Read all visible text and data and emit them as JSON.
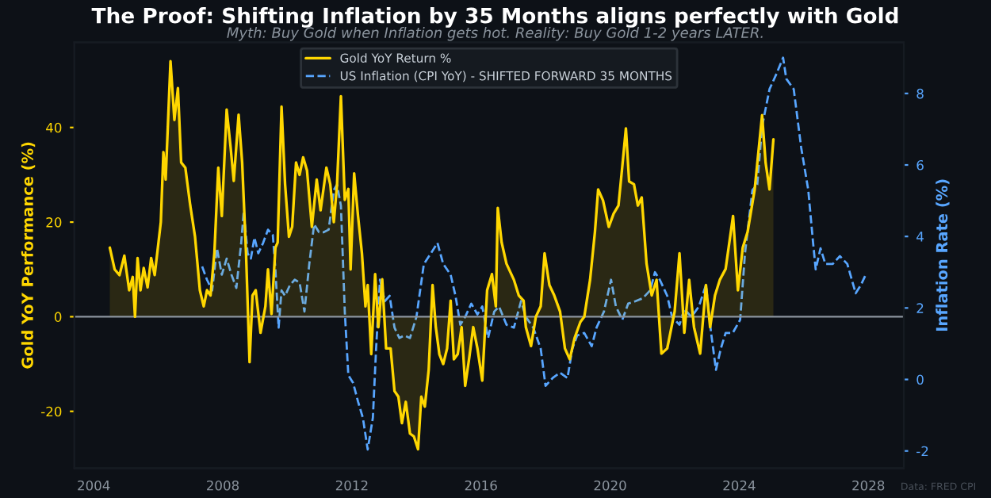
{
  "chart_data": {
    "type": "line",
    "title": "The Proof: Shifting Inflation by 35 Months aligns perfectly with Gold",
    "subtitle": "Myth: Buy Gold when Inflation gets hot. Reality: Buy Gold 1-2 years LATER.",
    "ylabel": "Gold YoY Performance (%)",
    "y2label": "Inflation Rate (%)",
    "annotations": [
      "Data: FRED CPI"
    ],
    "xlim": [
      2003.4,
      2029.1
    ],
    "xticks": [
      2004,
      2008,
      2012,
      2016,
      2020,
      2024,
      2028
    ],
    "ylim": [
      -32,
      58
    ],
    "yticks": [
      -20,
      0,
      20,
      40
    ],
    "y2lim": [
      -2.48,
      9.43
    ],
    "y2ticks": [
      -2,
      0,
      2,
      4,
      6,
      8
    ],
    "ref_lines": [
      {
        "axis": "y",
        "value": 0,
        "color": "#8b949e"
      }
    ],
    "grid": false,
    "legend": "top",
    "series": [
      {
        "name": "Gold YoY Return %",
        "type": "area",
        "color": "#ffd700",
        "x": [
          2004.5,
          2004.65,
          2004.8,
          2004.95,
          2005.1,
          2005.21,
          2005.28,
          2005.36,
          2005.45,
          2005.55,
          2005.67,
          2005.78,
          2005.89,
          2006.08,
          2006.16,
          2006.23,
          2006.38,
          2006.5,
          2006.61,
          2006.71,
          2006.84,
          2006.99,
          2007.14,
          2007.29,
          2007.41,
          2007.51,
          2007.62,
          2007.74,
          2007.86,
          2007.97,
          2008.12,
          2008.24,
          2008.34,
          2008.49,
          2008.6,
          2008.72,
          2008.83,
          2008.92,
          2009.02,
          2009.17,
          2009.32,
          2009.4,
          2009.51,
          2009.63,
          2009.7,
          2009.82,
          2009.93,
          2010.05,
          2010.15,
          2010.27,
          2010.38,
          2010.49,
          2010.61,
          2010.76,
          2010.91,
          2011.03,
          2011.21,
          2011.33,
          2011.44,
          2011.54,
          2011.66,
          2011.78,
          2011.89,
          2011.96,
          2012.07,
          2012.19,
          2012.31,
          2012.42,
          2012.49,
          2012.6,
          2012.72,
          2012.82,
          2012.94,
          2013.06,
          2013.2,
          2013.32,
          2013.44,
          2013.55,
          2013.67,
          2013.8,
          2013.92,
          2014.05,
          2014.15,
          2014.26,
          2014.38,
          2014.5,
          2014.6,
          2014.71,
          2014.83,
          2014.95,
          2015.06,
          2015.16,
          2015.28,
          2015.4,
          2015.51,
          2015.63,
          2015.76,
          2015.89,
          2016.04,
          2016.19,
          2016.34,
          2016.46,
          2016.52,
          2016.64,
          2016.79,
          2017.02,
          2017.17,
          2017.32,
          2017.39,
          2017.55,
          2017.7,
          2017.85,
          2017.97,
          2018.12,
          2018.27,
          2018.45,
          2018.6,
          2018.75,
          2018.9,
          2019.08,
          2019.2,
          2019.38,
          2019.53,
          2019.63,
          2019.78,
          2019.96,
          2020.11,
          2020.26,
          2020.38,
          2020.49,
          2020.59,
          2020.74,
          2020.86,
          2020.98,
          2021.13,
          2021.29,
          2021.44,
          2021.59,
          2021.77,
          2022.0,
          2022.15,
          2022.3,
          2022.45,
          2022.6,
          2022.79,
          2022.97,
          2023.1,
          2023.25,
          2023.4,
          2023.58,
          2023.81,
          2023.96,
          2024.11,
          2024.26,
          2024.48,
          2024.71,
          2024.82,
          2024.94,
          2025.06
        ],
        "values": [
          14.6,
          10,
          8.8,
          12.9,
          5.6,
          8.4,
          0,
          12.4,
          5.6,
          10.3,
          6.2,
          12.4,
          8.8,
          20,
          34.8,
          29,
          54,
          41.6,
          48.3,
          32.6,
          31.5,
          23.6,
          16.9,
          5.6,
          2.2,
          5.6,
          4.5,
          13.5,
          31.5,
          21.3,
          43.8,
          36,
          28.7,
          42.7,
          32.6,
          13.5,
          -9.6,
          4.5,
          5.6,
          -3.4,
          2.2,
          10,
          0.6,
          14.6,
          15.7,
          44.4,
          28,
          16.9,
          19,
          32.6,
          30,
          33.7,
          30.9,
          19,
          29,
          22.5,
          31.5,
          28,
          20,
          28,
          46.6,
          24.7,
          27,
          10,
          30.3,
          21.3,
          13.5,
          2.2,
          6.7,
          -7.9,
          9,
          -2.2,
          7.9,
          -6.7,
          -6.7,
          -15.7,
          -16.9,
          -22.5,
          -18,
          -24.7,
          -25.3,
          -28,
          -16.9,
          -19,
          -11.2,
          6.7,
          -2.2,
          -7.9,
          -10,
          -6.7,
          3.4,
          -9,
          -7.9,
          -2.2,
          -14.6,
          -9,
          -2.2,
          -6.7,
          -13.5,
          5.6,
          9,
          2.2,
          23,
          15.7,
          11.2,
          7.8,
          4.5,
          3.4,
          -2.2,
          -6.2,
          0,
          2.2,
          13.4,
          6.7,
          4.5,
          1.1,
          -6.7,
          -9,
          -4.5,
          -1.1,
          0,
          7.8,
          17.9,
          26.9,
          24.6,
          19,
          21.8,
          23.5,
          31.9,
          39.8,
          28.6,
          28,
          23.5,
          25.2,
          11.2,
          4.5,
          7.8,
          -7.8,
          -6.7,
          1.1,
          13.4,
          -3.4,
          7.8,
          -2.2,
          -7.8,
          6.7,
          -2.2,
          4.5,
          7.8,
          10.1,
          21.3,
          5.6,
          14.6,
          17.9,
          26.9,
          42.6,
          32.5,
          26.9,
          37.5
        ]
      },
      {
        "name": "US Inflation (CPI YoY) - SHIFTED FORWARD 35 MONTHS",
        "axis": "y2",
        "line_style": "dashed",
        "color": "#58a6ff",
        "x": [
          2007.36,
          2007.51,
          2007.67,
          2007.82,
          2007.97,
          2008.12,
          2008.27,
          2008.42,
          2008.57,
          2008.65,
          2008.77,
          2008.87,
          2008.98,
          2009.1,
          2009.25,
          2009.4,
          2009.55,
          2009.63,
          2009.73,
          2009.82,
          2009.93,
          2010.08,
          2010.23,
          2010.38,
          2010.53,
          2010.68,
          2010.83,
          2010.98,
          2011.13,
          2011.28,
          2011.44,
          2011.54,
          2011.66,
          2011.78,
          2011.89,
          2012.04,
          2012.19,
          2012.34,
          2012.49,
          2012.65,
          2012.75,
          2012.87,
          2013.02,
          2013.17,
          2013.32,
          2013.47,
          2013.62,
          2013.8,
          2014.0,
          2014.23,
          2014.45,
          2014.65,
          2014.83,
          2015.06,
          2015.21,
          2015.36,
          2015.51,
          2015.7,
          2015.89,
          2016.04,
          2016.22,
          2016.41,
          2016.56,
          2016.79,
          2017.02,
          2017.24,
          2017.39,
          2017.62,
          2017.85,
          2018.0,
          2018.22,
          2018.45,
          2018.68,
          2018.83,
          2018.98,
          2019.2,
          2019.43,
          2019.58,
          2019.81,
          2020.03,
          2020.18,
          2020.38,
          2020.56,
          2020.79,
          2021.01,
          2021.24,
          2021.39,
          2021.54,
          2021.77,
          2021.92,
          2022.15,
          2022.3,
          2022.52,
          2022.75,
          2022.97,
          2023.13,
          2023.28,
          2023.43,
          2023.58,
          2023.8,
          2024.03,
          2024.18,
          2024.41,
          2024.56,
          2024.71,
          2024.94,
          2025.16,
          2025.36,
          2025.46,
          2025.69,
          2025.92,
          2026.14,
          2026.29,
          2026.37,
          2026.52,
          2026.67,
          2026.9,
          2027.12,
          2027.35,
          2027.61,
          2027.77,
          2027.92
        ],
        "values": [
          3.16,
          2.79,
          2.49,
          3.67,
          2.93,
          3.38,
          2.93,
          2.56,
          3.82,
          4.71,
          3.53,
          3.38,
          3.97,
          3.53,
          3.82,
          4.19,
          4.04,
          3.08,
          1.45,
          2.49,
          2.34,
          2.64,
          2.79,
          2.71,
          1.9,
          3.23,
          4.34,
          4.12,
          4.12,
          4.19,
          5.3,
          5.45,
          4.86,
          1.9,
          0.12,
          -0.1,
          -0.62,
          -1.07,
          -1.96,
          -1.07,
          0.86,
          2.79,
          2.19,
          2.34,
          1.45,
          1.16,
          1.23,
          1.16,
          1.75,
          3.23,
          3.53,
          3.82,
          3.23,
          2.93,
          2.34,
          1.53,
          1.75,
          2.12,
          1.82,
          2.04,
          1.16,
          1.9,
          2.04,
          1.53,
          1.45,
          2.19,
          1.75,
          1.45,
          0.86,
          -0.18,
          0.04,
          0.19,
          0.04,
          0.86,
          1.23,
          1.3,
          0.93,
          1.45,
          1.9,
          2.79,
          2.04,
          1.67,
          2.12,
          2.19,
          2.27,
          2.49,
          3.0,
          2.79,
          2.34,
          1.75,
          1.53,
          1.97,
          1.75,
          2.04,
          2.64,
          1.3,
          0.27,
          0.86,
          1.3,
          1.3,
          1.67,
          3.53,
          5.3,
          5.45,
          7.08,
          8.12,
          8.56,
          9.0,
          8.41,
          8.12,
          6.49,
          5.3,
          3.82,
          3.08,
          3.67,
          3.23,
          3.23,
          3.45,
          3.23,
          2.41,
          2.64,
          2.93
        ]
      }
    ]
  }
}
